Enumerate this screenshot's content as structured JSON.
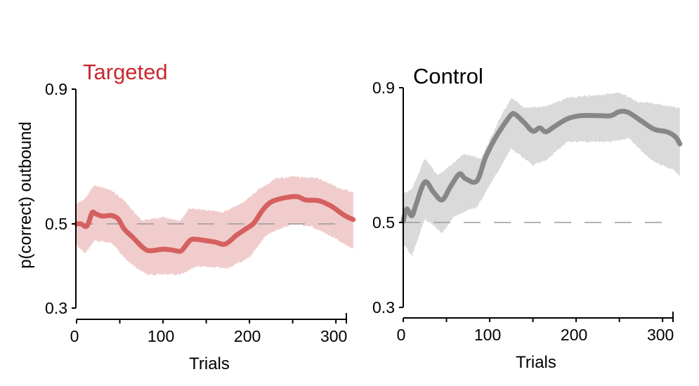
{
  "chart_data": [
    {
      "type": "line",
      "title": "Targeted",
      "title_color": "#c8282f",
      "xlabel": "Trials",
      "ylabel": "p(correct) outbound",
      "xlim": [
        0,
        320
      ],
      "ylim": [
        0.3,
        0.9
      ],
      "xticks": [
        0,
        50,
        100,
        150,
        200,
        250,
        300
      ],
      "xtick_labels": [
        "0",
        "",
        "100",
        "",
        "200",
        "",
        "300"
      ],
      "yticks": [
        0.3,
        0.5,
        0.9
      ],
      "ytick_labels": [
        "0.3",
        "0.5",
        "0.9"
      ],
      "grid": false,
      "reference_line": {
        "y": 0.5,
        "style": "dashed",
        "color": "#999999"
      },
      "line_color": "#d4605f",
      "band_color": "#f1cccc",
      "series": [
        {
          "name": "Targeted mean",
          "x": [
            0,
            5,
            12,
            18,
            22,
            30,
            40,
            48,
            55,
            65,
            75,
            82,
            90,
            100,
            110,
            120,
            125,
            132,
            140,
            150,
            160,
            172,
            185,
            195,
            205,
            215,
            225,
            240,
            255,
            265,
            280,
            295,
            310,
            320
          ],
          "y": [
            0.5,
            0.5,
            0.495,
            0.533,
            0.53,
            0.523,
            0.525,
            0.515,
            0.488,
            0.468,
            0.447,
            0.437,
            0.437,
            0.44,
            0.438,
            0.435,
            0.445,
            0.462,
            0.463,
            0.46,
            0.457,
            0.452,
            0.473,
            0.487,
            0.502,
            0.54,
            0.565,
            0.577,
            0.581,
            0.571,
            0.569,
            0.552,
            0.525,
            0.513
          ]
        }
      ],
      "band": {
        "upper": {
          "x": [
            0,
            10,
            20,
            40,
            55,
            75,
            100,
            120,
            130,
            170,
            190,
            210,
            230,
            250,
            280,
            305,
            320
          ],
          "y": [
            0.56,
            0.575,
            0.615,
            0.6,
            0.57,
            0.51,
            0.52,
            0.51,
            0.545,
            0.535,
            0.56,
            0.6,
            0.635,
            0.64,
            0.635,
            0.605,
            0.595
          ]
        },
        "lower": {
          "x": [
            0,
            10,
            20,
            40,
            60,
            80,
            120,
            140,
            175,
            200,
            220,
            250,
            270,
            300,
            320
          ],
          "y": [
            0.45,
            0.43,
            0.46,
            0.455,
            0.41,
            0.38,
            0.38,
            0.4,
            0.395,
            0.42,
            0.475,
            0.5,
            0.495,
            0.465,
            0.44
          ]
        }
      }
    },
    {
      "type": "line",
      "title": "Control",
      "title_color": "#000000",
      "xlabel": "Trials",
      "ylabel": "",
      "xlim": [
        0,
        320
      ],
      "ylim": [
        0.3,
        0.9
      ],
      "xticks": [
        0,
        50,
        100,
        150,
        200,
        250,
        300
      ],
      "xtick_labels": [
        "0",
        "",
        "100",
        "",
        "200",
        "",
        "300"
      ],
      "yticks": [
        0.3,
        0.5,
        0.9
      ],
      "ytick_labels": [
        "0.3",
        "0.5",
        "0.9"
      ],
      "grid": false,
      "reference_line": {
        "y": 0.5,
        "style": "dashed",
        "color": "#999999"
      },
      "line_color": "#878787",
      "band_color": "#dadada",
      "series": [
        {
          "name": "Control mean",
          "x": [
            0,
            4,
            10,
            15,
            25,
            35,
            45,
            55,
            65,
            72,
            85,
            95,
            105,
            115,
            125,
            130,
            140,
            150,
            158,
            165,
            175,
            190,
            205,
            225,
            240,
            250,
            260,
            275,
            290,
            305,
            315,
            320
          ],
          "y": [
            0.504,
            0.54,
            0.52,
            0.555,
            0.62,
            0.59,
            0.567,
            0.608,
            0.644,
            0.63,
            0.623,
            0.692,
            0.744,
            0.785,
            0.82,
            0.82,
            0.796,
            0.771,
            0.781,
            0.769,
            0.785,
            0.808,
            0.817,
            0.817,
            0.817,
            0.829,
            0.827,
            0.802,
            0.777,
            0.769,
            0.754,
            0.733
          ]
        }
      ],
      "band": {
        "upper": {
          "x": [
            0,
            10,
            25,
            40,
            55,
            70,
            90,
            110,
            125,
            140,
            165,
            190,
            250,
            270,
            300,
            320
          ],
          "y": [
            0.585,
            0.6,
            0.69,
            0.64,
            0.67,
            0.705,
            0.69,
            0.8,
            0.87,
            0.84,
            0.845,
            0.87,
            0.885,
            0.86,
            0.85,
            0.84
          ]
        },
        "lower": {
          "x": [
            0,
            10,
            25,
            45,
            60,
            85,
            100,
            125,
            150,
            165,
            190,
            240,
            260,
            290,
            310,
            320
          ],
          "y": [
            0.45,
            0.42,
            0.51,
            0.475,
            0.52,
            0.545,
            0.61,
            0.72,
            0.67,
            0.685,
            0.74,
            0.74,
            0.75,
            0.68,
            0.66,
            0.64
          ]
        }
      }
    }
  ]
}
